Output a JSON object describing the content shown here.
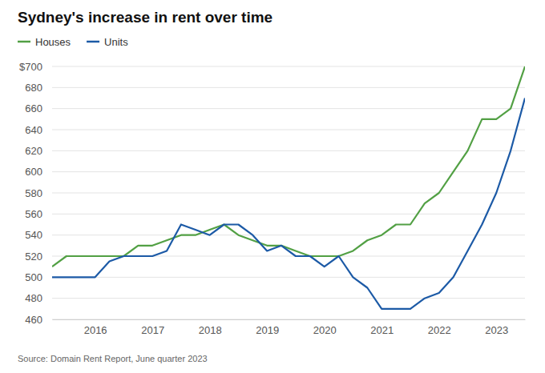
{
  "chart_data": {
    "type": "line",
    "title": "Sydney's increase in rent over time",
    "source": "Source: Domain Rent Report, June quarter 2023",
    "x": [
      2015.25,
      2015.5,
      2015.75,
      2016,
      2016.25,
      2016.5,
      2016.75,
      2017,
      2017.25,
      2017.5,
      2017.75,
      2018,
      2018.25,
      2018.5,
      2018.75,
      2019,
      2019.25,
      2019.5,
      2019.75,
      2020,
      2020.25,
      2020.5,
      2020.75,
      2021,
      2021.25,
      2021.5,
      2021.75,
      2022,
      2022.25,
      2022.5,
      2022.75,
      2023,
      2023.25,
      2023.5
    ],
    "series": [
      {
        "name": "Houses",
        "color": "#52a044",
        "values": [
          510,
          520,
          520,
          520,
          520,
          520,
          530,
          530,
          535,
          540,
          540,
          545,
          550,
          540,
          535,
          530,
          530,
          525,
          520,
          520,
          520,
          525,
          535,
          540,
          550,
          550,
          570,
          580,
          600,
          620,
          650,
          650,
          660,
          700
        ]
      },
      {
        "name": "Units",
        "color": "#1c5aa6",
        "values": [
          500,
          500,
          500,
          500,
          515,
          520,
          520,
          520,
          525,
          550,
          545,
          540,
          550,
          550,
          540,
          525,
          530,
          520,
          520,
          510,
          520,
          500,
          490,
          470,
          470,
          470,
          480,
          485,
          500,
          525,
          550,
          580,
          620,
          670
        ]
      }
    ],
    "xlim": [
      2015.25,
      2023.5
    ],
    "xticks": [
      2016,
      2017,
      2018,
      2019,
      2020,
      2021,
      2022,
      2023
    ],
    "ylim": [
      460,
      700
    ],
    "yticks": [
      460,
      480,
      500,
      520,
      540,
      560,
      580,
      600,
      620,
      640,
      660,
      680,
      {
        "value": 700,
        "label": "$700"
      }
    ],
    "grid": true,
    "legend": "top-left"
  }
}
